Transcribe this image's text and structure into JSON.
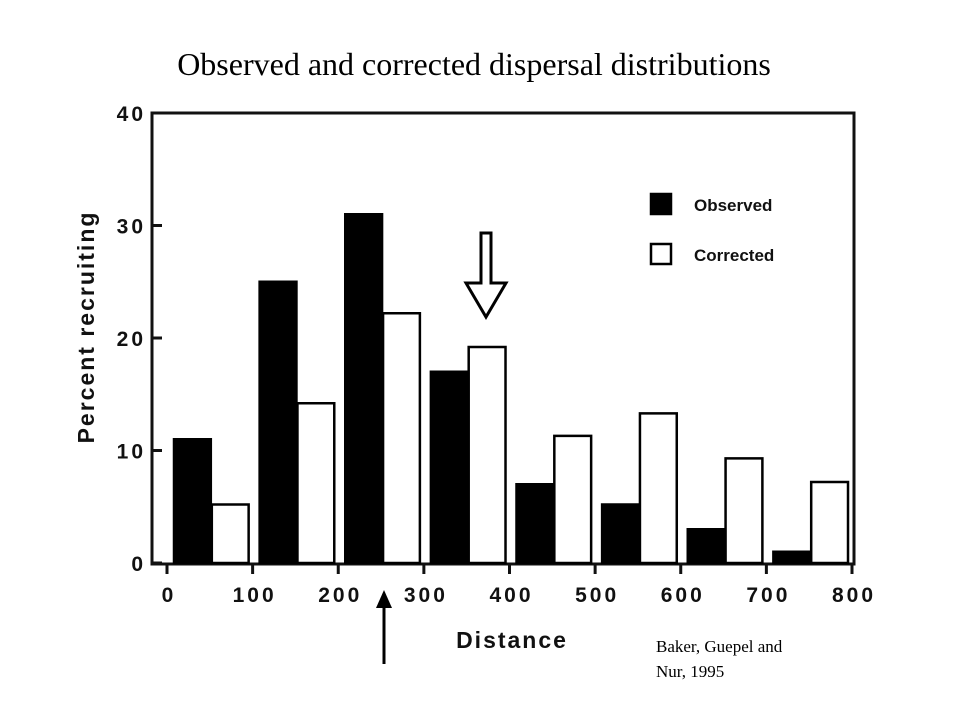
{
  "slide": {
    "title": "Observed and corrected dispersal distributions",
    "citation_line1": "Baker, Guepel and",
    "citation_line2": "Nur, 1995"
  },
  "chart_data": {
    "type": "bar",
    "xlabel": "Distance",
    "ylabel": "Percent recruiting",
    "x_ticks": [
      "0",
      "100",
      "200",
      "300",
      "400",
      "500",
      "600",
      "700",
      "800"
    ],
    "y_ticks": [
      "0",
      "10",
      "20",
      "30",
      "40"
    ],
    "xlim": [
      0,
      800
    ],
    "ylim": [
      0,
      40
    ],
    "bin_starts": [
      0,
      100,
      200,
      300,
      400,
      500,
      600,
      700
    ],
    "bin_width": 100,
    "series": [
      {
        "name": "Observed",
        "color": "#000000",
        "values": [
          11,
          25,
          31,
          17,
          7,
          5.2,
          3,
          1
        ]
      },
      {
        "name": "Corrected",
        "color": "#ffffff",
        "values": [
          5.2,
          14.2,
          22.2,
          19.2,
          11.3,
          13.3,
          9.3,
          7.2
        ]
      }
    ],
    "legend_position": "top-right",
    "grid": false,
    "annotations": [
      {
        "type": "hollow-down-arrow",
        "x": 375,
        "y_tip": 22
      },
      {
        "type": "solid-up-arrow",
        "x": 255,
        "note": "below x-axis"
      }
    ]
  }
}
